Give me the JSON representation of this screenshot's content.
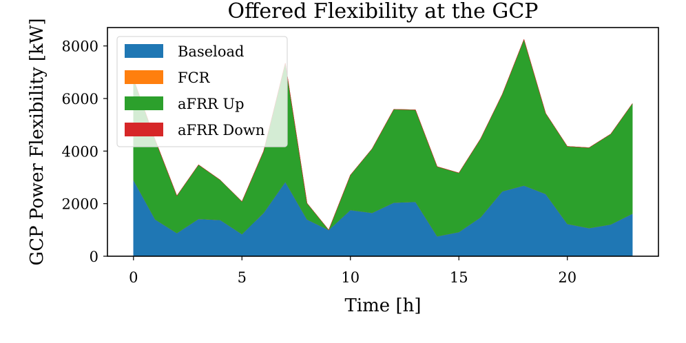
{
  "chart_data": {
    "type": "area",
    "title": "Offered Flexibility at the GCP",
    "xlabel": "Time [h]",
    "ylabel": "GCP Power Flexibility [kW]",
    "xlim": [
      -1.2,
      24.2
    ],
    "ylim": [
      0,
      8700
    ],
    "xticks": [
      0,
      5,
      10,
      15,
      20
    ],
    "yticks": [
      0,
      2000,
      4000,
      6000,
      8000
    ],
    "grid": false,
    "legend_position": "top-left",
    "x": [
      0,
      1,
      2,
      3,
      4,
      5,
      6,
      7,
      8,
      9,
      10,
      11,
      12,
      13,
      14,
      15,
      16,
      17,
      18,
      19,
      20,
      21,
      22,
      23
    ],
    "stacked": true,
    "series": [
      {
        "name": "Baseload",
        "color": "#1f77b4",
        "values": [
          2900,
          1400,
          880,
          1420,
          1380,
          840,
          1650,
          2830,
          1400,
          1000,
          1760,
          1650,
          2040,
          2070,
          760,
          920,
          1480,
          2470,
          2690,
          2370,
          1230,
          1070,
          1210,
          1620
        ]
      },
      {
        "name": "FCR",
        "color": "#ff7f0e",
        "values": [
          0,
          0,
          0,
          0,
          0,
          0,
          0,
          0,
          0,
          0,
          0,
          0,
          0,
          0,
          0,
          0,
          0,
          0,
          0,
          0,
          0,
          0,
          0,
          0
        ]
      },
      {
        "name": "aFRR Up",
        "color": "#2ca02c",
        "values": [
          3850,
          3030,
          1420,
          2060,
          1520,
          1240,
          2350,
          4520,
          620,
          0,
          1330,
          2440,
          3550,
          3500,
          2650,
          2250,
          2990,
          3690,
          5560,
          3070,
          2950,
          3060,
          3440,
          4190
        ]
      },
      {
        "name": "aFRR Down",
        "color": "#d62728",
        "values": [
          0,
          0,
          0,
          0,
          0,
          0,
          0,
          0,
          0,
          0,
          0,
          0,
          0,
          0,
          0,
          0,
          0,
          0,
          0,
          0,
          0,
          0,
          0,
          0
        ]
      }
    ]
  }
}
